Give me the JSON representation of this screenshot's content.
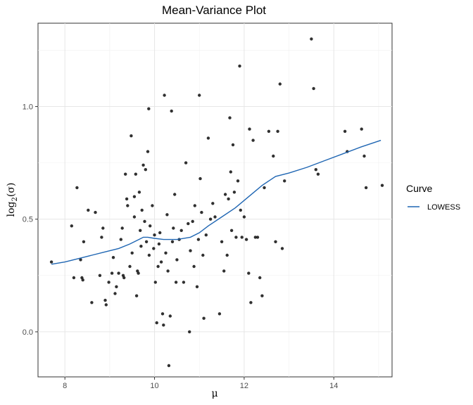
{
  "chart_data": {
    "type": "scatter",
    "title": "Mean-Variance Plot",
    "xlabel": "μ",
    "ylabel_main": "log",
    "ylabel_sub": "2",
    "ylabel_arg": "(σ)",
    "xlim": [
      7.4,
      15.3
    ],
    "ylim": [
      -0.2,
      1.37
    ],
    "x_ticks": [
      8,
      10,
      12,
      14
    ],
    "y_ticks": [
      0.0,
      0.5,
      1.0
    ],
    "y_tick_labels": [
      "0.0",
      "0.5",
      "1.0"
    ],
    "grid": true,
    "legend": {
      "title": "Curve",
      "placement": "right",
      "items": [
        {
          "label": "LOWESS",
          "color": "#1f66b3"
        }
      ]
    },
    "point_color": "#1a1a1a",
    "points": [
      [
        7.7,
        0.31
      ],
      [
        8.15,
        0.47
      ],
      [
        8.2,
        0.24
      ],
      [
        8.27,
        0.64
      ],
      [
        8.35,
        0.32
      ],
      [
        8.38,
        0.24
      ],
      [
        8.42,
        0.4
      ],
      [
        8.4,
        0.23
      ],
      [
        8.52,
        0.54
      ],
      [
        8.6,
        0.13
      ],
      [
        8.68,
        0.53
      ],
      [
        8.78,
        0.25
      ],
      [
        8.82,
        0.42
      ],
      [
        8.85,
        0.46
      ],
      [
        8.9,
        0.14
      ],
      [
        8.92,
        0.12
      ],
      [
        8.98,
        0.22
      ],
      [
        9.05,
        0.26
      ],
      [
        9.08,
        0.33
      ],
      [
        9.12,
        0.17
      ],
      [
        9.15,
        0.2
      ],
      [
        9.2,
        0.26
      ],
      [
        9.25,
        0.41
      ],
      [
        9.28,
        0.46
      ],
      [
        9.3,
        0.25
      ],
      [
        9.32,
        0.24
      ],
      [
        9.35,
        0.7
      ],
      [
        9.38,
        0.59
      ],
      [
        9.4,
        0.56
      ],
      [
        9.45,
        0.29
      ],
      [
        9.48,
        0.87
      ],
      [
        9.5,
        0.35
      ],
      [
        9.55,
        0.51
      ],
      [
        9.55,
        0.6
      ],
      [
        9.58,
        0.7
      ],
      [
        9.6,
        0.16
      ],
      [
        9.62,
        0.27
      ],
      [
        9.64,
        0.26
      ],
      [
        9.66,
        0.62
      ],
      [
        9.68,
        0.45
      ],
      [
        9.7,
        0.38
      ],
      [
        9.72,
        0.54
      ],
      [
        9.75,
        0.74
      ],
      [
        9.78,
        0.49
      ],
      [
        9.8,
        0.72
      ],
      [
        9.82,
        0.4
      ],
      [
        9.85,
        0.8
      ],
      [
        9.87,
        0.99
      ],
      [
        9.88,
        0.34
      ],
      [
        9.9,
        0.47
      ],
      [
        9.95,
        0.56
      ],
      [
        9.98,
        0.37
      ],
      [
        10.0,
        0.43
      ],
      [
        10.02,
        0.22
      ],
      [
        10.05,
        0.04
      ],
      [
        10.08,
        0.29
      ],
      [
        10.1,
        0.39
      ],
      [
        10.12,
        0.44
      ],
      [
        10.15,
        0.31
      ],
      [
        10.18,
        0.08
      ],
      [
        10.2,
        0.03
      ],
      [
        10.22,
        1.05
      ],
      [
        10.25,
        0.35
      ],
      [
        10.28,
        0.52
      ],
      [
        10.3,
        0.27
      ],
      [
        10.32,
        -0.15
      ],
      [
        10.35,
        0.07
      ],
      [
        10.38,
        0.98
      ],
      [
        10.4,
        0.4
      ],
      [
        10.42,
        0.46
      ],
      [
        10.45,
        0.61
      ],
      [
        10.48,
        0.22
      ],
      [
        10.5,
        0.32
      ],
      [
        10.55,
        0.41
      ],
      [
        10.6,
        0.45
      ],
      [
        10.65,
        0.22
      ],
      [
        10.7,
        0.75
      ],
      [
        10.75,
        0.48
      ],
      [
        10.78,
        0.0
      ],
      [
        10.8,
        0.36
      ],
      [
        10.85,
        0.49
      ],
      [
        10.88,
        0.29
      ],
      [
        10.9,
        0.56
      ],
      [
        10.95,
        0.2
      ],
      [
        10.98,
        0.41
      ],
      [
        11.0,
        1.05
      ],
      [
        11.02,
        0.68
      ],
      [
        11.05,
        0.53
      ],
      [
        11.08,
        0.34
      ],
      [
        11.1,
        0.06
      ],
      [
        11.15,
        0.43
      ],
      [
        11.2,
        0.86
      ],
      [
        11.25,
        0.5
      ],
      [
        11.3,
        0.57
      ],
      [
        11.35,
        0.51
      ],
      [
        11.45,
        0.08
      ],
      [
        11.5,
        0.4
      ],
      [
        11.55,
        0.27
      ],
      [
        11.58,
        0.61
      ],
      [
        11.62,
        0.34
      ],
      [
        11.65,
        0.59
      ],
      [
        11.68,
        0.95
      ],
      [
        11.7,
        0.71
      ],
      [
        11.72,
        0.45
      ],
      [
        11.75,
        0.83
      ],
      [
        11.78,
        0.62
      ],
      [
        11.82,
        0.42
      ],
      [
        11.86,
        0.67
      ],
      [
        11.9,
        1.18
      ],
      [
        11.92,
        0.54
      ],
      [
        11.95,
        0.42
      ],
      [
        12.0,
        0.51
      ],
      [
        12.05,
        0.41
      ],
      [
        12.1,
        0.26
      ],
      [
        12.12,
        0.9
      ],
      [
        12.15,
        0.13
      ],
      [
        12.2,
        0.85
      ],
      [
        12.25,
        0.42
      ],
      [
        12.3,
        0.42
      ],
      [
        12.35,
        0.24
      ],
      [
        12.4,
        0.16
      ],
      [
        12.45,
        0.64
      ],
      [
        12.55,
        0.89
      ],
      [
        12.65,
        0.78
      ],
      [
        12.7,
        0.4
      ],
      [
        12.75,
        0.89
      ],
      [
        12.8,
        1.1
      ],
      [
        12.85,
        0.37
      ],
      [
        12.9,
        0.67
      ],
      [
        13.5,
        1.3
      ],
      [
        13.55,
        1.08
      ],
      [
        13.6,
        0.72
      ],
      [
        13.65,
        0.7
      ],
      [
        14.25,
        0.89
      ],
      [
        14.3,
        0.8
      ],
      [
        14.62,
        0.9
      ],
      [
        14.68,
        0.78
      ],
      [
        14.72,
        0.64
      ],
      [
        15.08,
        0.65
      ]
    ],
    "lowess": [
      [
        7.7,
        0.3
      ],
      [
        8.0,
        0.31
      ],
      [
        8.3,
        0.325
      ],
      [
        8.6,
        0.34
      ],
      [
        8.9,
        0.355
      ],
      [
        9.2,
        0.37
      ],
      [
        9.45,
        0.39
      ],
      [
        9.65,
        0.41
      ],
      [
        9.75,
        0.42
      ],
      [
        9.85,
        0.42
      ],
      [
        10.0,
        0.415
      ],
      [
        10.2,
        0.41
      ],
      [
        10.5,
        0.41
      ],
      [
        10.8,
        0.42
      ],
      [
        11.0,
        0.44
      ],
      [
        11.2,
        0.47
      ],
      [
        11.5,
        0.51
      ],
      [
        11.8,
        0.55
      ],
      [
        12.1,
        0.6
      ],
      [
        12.4,
        0.65
      ],
      [
        12.7,
        0.69
      ],
      [
        13.0,
        0.705
      ],
      [
        13.4,
        0.73
      ],
      [
        13.8,
        0.76
      ],
      [
        14.2,
        0.79
      ],
      [
        14.6,
        0.82
      ],
      [
        15.05,
        0.85
      ]
    ]
  }
}
